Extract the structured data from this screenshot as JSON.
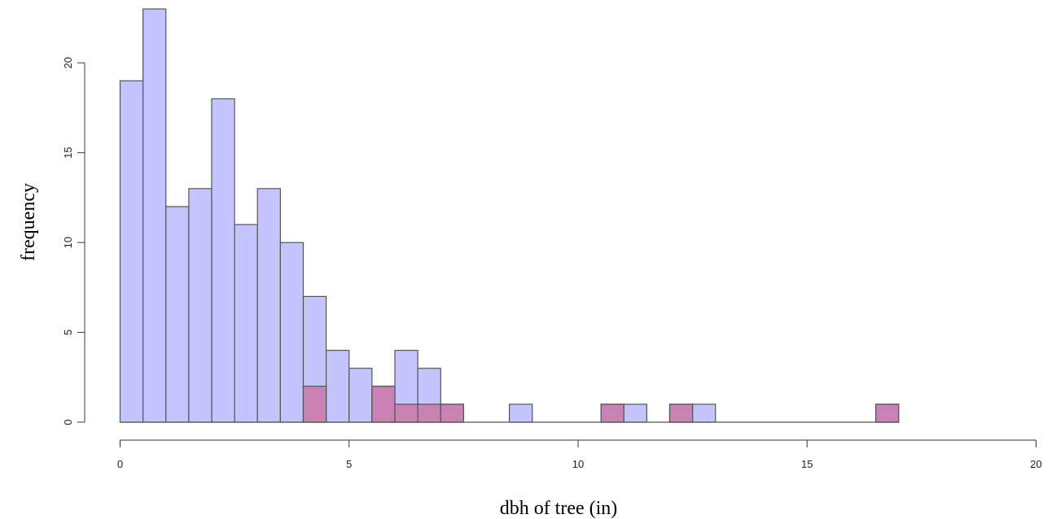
{
  "chart_data": {
    "type": "bar",
    "title": "",
    "xlabel": "dbh of tree (in)",
    "ylabel": "frequency",
    "xlim": [
      0,
      20
    ],
    "ylim": [
      0,
      23
    ],
    "x_ticks": [
      0,
      5,
      10,
      15,
      20
    ],
    "y_ticks": [
      0,
      5,
      10,
      15,
      20
    ],
    "bin_width": 0.5,
    "legend": "none",
    "grid": false,
    "series": [
      {
        "color": "#c4c4ff",
        "bins": [
          {
            "x0": 0.0,
            "count": 19
          },
          {
            "x0": 0.5,
            "count": 23
          },
          {
            "x0": 1.0,
            "count": 12
          },
          {
            "x0": 1.5,
            "count": 13
          },
          {
            "x0": 2.0,
            "count": 18
          },
          {
            "x0": 2.5,
            "count": 11
          },
          {
            "x0": 3.0,
            "count": 13
          },
          {
            "x0": 3.5,
            "count": 10
          },
          {
            "x0": 4.0,
            "count": 7
          },
          {
            "x0": 4.5,
            "count": 4
          },
          {
            "x0": 5.0,
            "count": 3
          },
          {
            "x0": 5.5,
            "count": 2
          },
          {
            "x0": 6.0,
            "count": 4
          },
          {
            "x0": 6.5,
            "count": 3
          },
          {
            "x0": 7.0,
            "count": 1
          },
          {
            "x0": 8.5,
            "count": 1
          },
          {
            "x0": 10.5,
            "count": 1
          },
          {
            "x0": 11.0,
            "count": 1
          },
          {
            "x0": 12.0,
            "count": 1
          },
          {
            "x0": 12.5,
            "count": 1
          },
          {
            "x0": 16.5,
            "count": 1
          }
        ]
      },
      {
        "color": "#c882b4",
        "bins": [
          {
            "x0": 4.0,
            "count": 2
          },
          {
            "x0": 5.5,
            "count": 2
          },
          {
            "x0": 6.0,
            "count": 1
          },
          {
            "x0": 6.5,
            "count": 1
          },
          {
            "x0": 7.0,
            "count": 1
          },
          {
            "x0": 10.5,
            "count": 1
          },
          {
            "x0": 12.0,
            "count": 1
          },
          {
            "x0": 16.5,
            "count": 1
          }
        ]
      }
    ]
  }
}
